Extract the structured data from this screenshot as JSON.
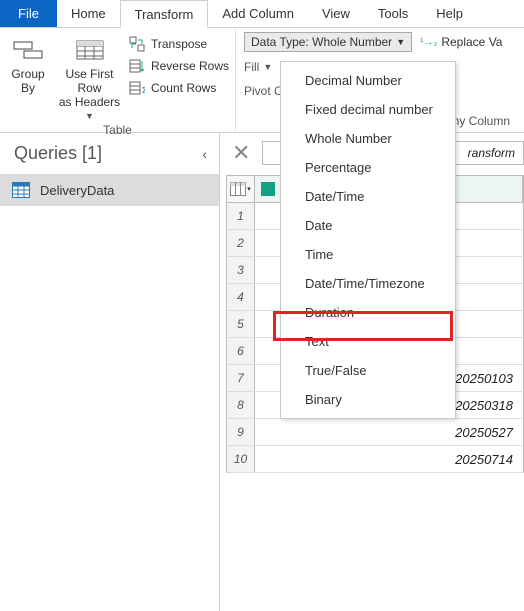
{
  "menu": {
    "file": "File",
    "home": "Home",
    "transform": "Transform",
    "addColumn": "Add Column",
    "view": "View",
    "tools": "Tools",
    "help": "Help"
  },
  "ribbon": {
    "groupBy": "Group\nBy",
    "useFirstRow": "Use First Row\nas Headers",
    "transpose": "Transpose",
    "reverseRows": "Reverse Rows",
    "countRows": "Count Rows",
    "tableGroupLabel": "Table",
    "dataTypeLabel": "Data Type: Whole Number",
    "replaceValues": "Replace Va",
    "fill": "Fill",
    "pivotColumn": "Pivot Colum",
    "anyColumn": "ny Column"
  },
  "dropdown": {
    "items": [
      "Decimal Number",
      "Fixed decimal number",
      "Whole Number",
      "Percentage",
      "Date/Time",
      "Date",
      "Time",
      "Date/Time/Timezone",
      "Duration",
      "Text",
      "True/False",
      "Binary"
    ],
    "highlightIndex": 9
  },
  "queries": {
    "title": "Queries [1]",
    "items": [
      "DeliveryData"
    ]
  },
  "formulaBar": {
    "text": "ransform"
  },
  "grid": {
    "rows": [
      {
        "n": "1",
        "val": ""
      },
      {
        "n": "2",
        "val": ""
      },
      {
        "n": "3",
        "val": ""
      },
      {
        "n": "4",
        "val": ""
      },
      {
        "n": "5",
        "val": ""
      },
      {
        "n": "6",
        "val": ""
      },
      {
        "n": "7",
        "val": "20250103"
      },
      {
        "n": "8",
        "val": "20250318"
      },
      {
        "n": "9",
        "val": "20250527"
      },
      {
        "n": "10",
        "val": "20250714"
      }
    ]
  },
  "colors": {
    "fileTab": "#0b66c3",
    "highlightBorder": "#e02424",
    "typeIcon": "#13a085"
  }
}
